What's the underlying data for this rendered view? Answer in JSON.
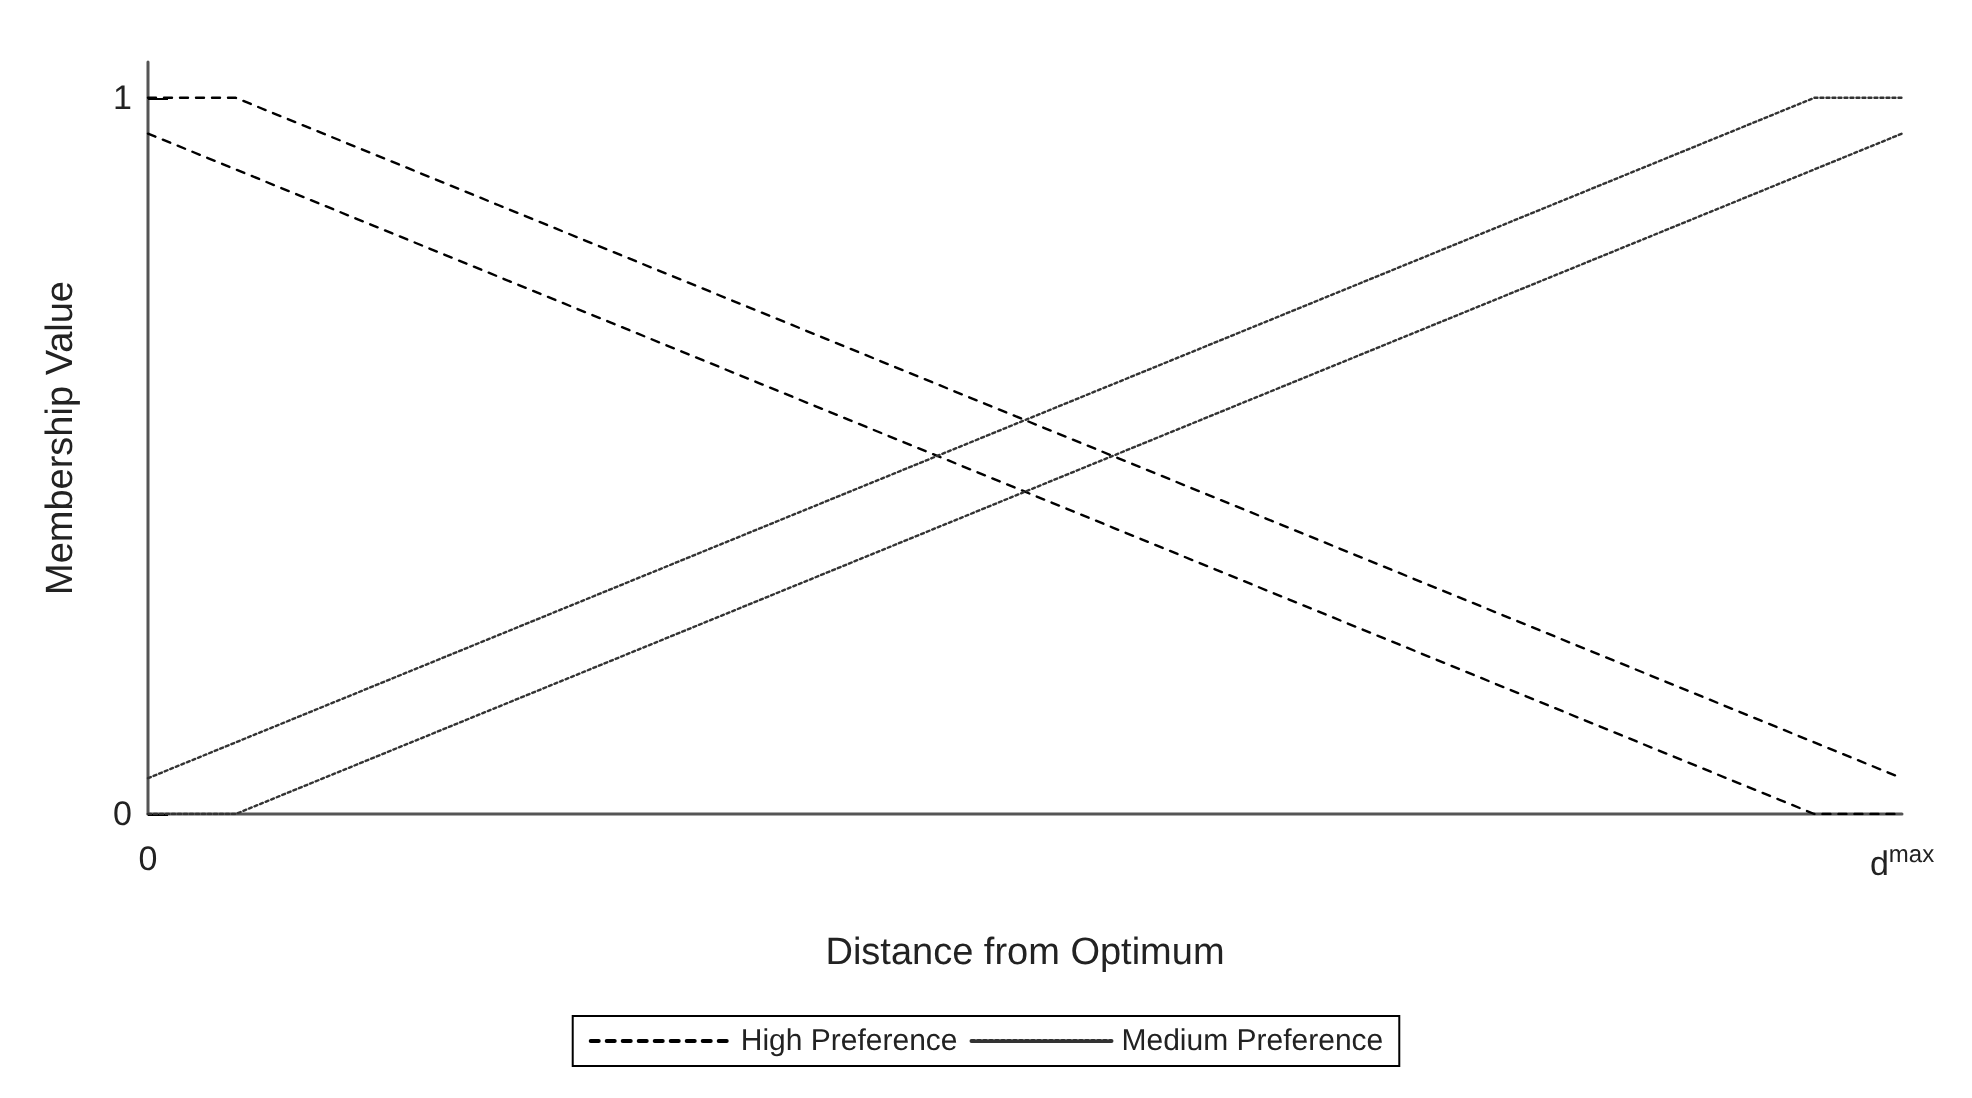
{
  "chart_data": {
    "type": "line",
    "xlabel": "Distance from Optimum",
    "ylabel": "Membership Value",
    "categories": [
      "0",
      null,
      null,
      null,
      null,
      null,
      null,
      null,
      null,
      null,
      null,
      null,
      null,
      null,
      null,
      null,
      null,
      null,
      null,
      null,
      "d$^{max}$"
    ],
    "ylim": [
      0,
      1.05
    ],
    "yticks": [
      0,
      1
    ],
    "grid": false,
    "legend": "bottom",
    "marker": "none",
    "series": [
      {
        "name": "High Preference",
        "color": "#000000",
        "line_style": "dashed",
        "values": [
          1,
          1,
          0.95,
          0.9,
          0.85,
          0.8,
          0.75,
          0.7,
          0.65,
          0.6,
          0.55,
          0.5,
          0.45,
          0.4,
          0.35,
          0.3,
          0.25,
          0.2,
          0.15,
          0.1,
          0.05
        ]
      },
      {
        "color": "#000000",
        "line_style": "dashed",
        "values": [
          0.95,
          0.9,
          0.85,
          0.8,
          0.75,
          0.7,
          0.65,
          0.6,
          0.55,
          0.5,
          0.45,
          0.4,
          0.35,
          0.3,
          0.25,
          0.2,
          0.15,
          0.1,
          0.05,
          0,
          0
        ]
      },
      {
        "name": "Medium Preference",
        "color": "#333333",
        "line_style": "dotted",
        "values": [
          0.05,
          0.1,
          0.15,
          0.2,
          0.25,
          0.3,
          0.35,
          0.4,
          0.45,
          0.5,
          0.55,
          0.6,
          0.65,
          0.7,
          0.75,
          0.8,
          0.85,
          0.9,
          0.95,
          1,
          1
        ]
      },
      {
        "color": "#333333",
        "line_style": "dotted",
        "values": [
          0,
          0,
          0.05,
          0.1,
          0.15,
          0.2,
          0.25,
          0.3,
          0.35,
          0.4,
          0.45,
          0.5,
          0.55,
          0.6,
          0.65,
          0.7,
          0.75,
          0.8,
          0.85,
          0.9,
          0.95
        ]
      }
    ]
  }
}
